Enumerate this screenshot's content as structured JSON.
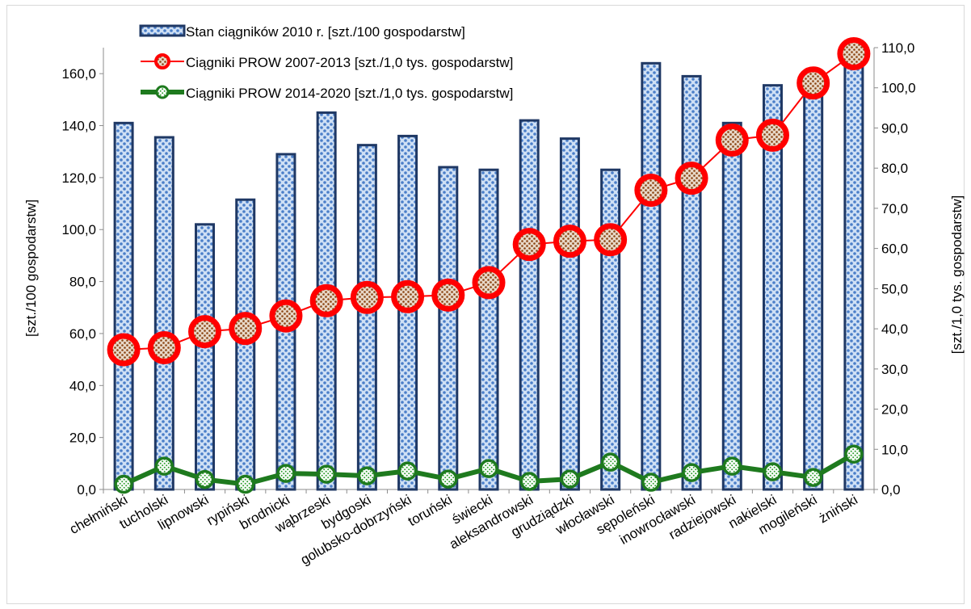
{
  "chart_data": {
    "type": "bar",
    "categories": [
      "chełmiński",
      "tucholski",
      "lipnowski",
      "rypiński",
      "brodnicki",
      "wąbrzeski",
      "bydgoski",
      "golubsko-dobrzyński",
      "toruński",
      "świecki",
      "aleksandrowski",
      "grudziądzki",
      "włocławski",
      "sępoleński",
      "inowrocławski",
      "radziejowski",
      "nakielski",
      "mogileński",
      "żniński"
    ],
    "series": [
      {
        "name": "Stan ciągników 2010 r. [szt./100 gospodarstw]",
        "type": "bar",
        "axis": "left",
        "color": "#4a7ec8",
        "values": [
          141,
          135.5,
          102,
          111.5,
          129,
          145,
          132.5,
          136,
          124,
          123,
          142,
          135,
          123,
          164,
          159,
          141,
          155.5,
          155,
          167
        ]
      },
      {
        "name": "Ciągniki PROW 2007-2013 [szt./1,0 tys. gospodarstw]",
        "type": "line",
        "axis": "right",
        "color": "#ff0000",
        "values": [
          34.8,
          35.3,
          39.3,
          40.1,
          43.2,
          47,
          47.8,
          48,
          48.4,
          51.5,
          61,
          61.8,
          62.2,
          74.5,
          77.5,
          87,
          88.2,
          101.2,
          108.5
        ]
      },
      {
        "name": "Ciągniki PROW 2014-2020 [szt./1,0 tys. gospodarstw]",
        "type": "line",
        "axis": "right",
        "color": "#1e7a1e",
        "values": [
          1.3,
          5.8,
          2.5,
          1.3,
          4,
          3.8,
          3.4,
          4.6,
          2.6,
          5.2,
          2,
          2.6,
          6.8,
          1.8,
          4.2,
          5.8,
          4.4,
          3,
          8.8
        ]
      }
    ],
    "ylabel": "[szt./100 gospodarstw]",
    "y2label": "[szt./1,0 tys. gospodarstw]",
    "ylim": [
      0,
      170
    ],
    "y2lim": [
      0,
      110
    ],
    "yticks": [
      "0,0",
      "20,0",
      "40,0",
      "60,0",
      "80,0",
      "100,0",
      "120,0",
      "140,0",
      "160,0"
    ],
    "y2ticks": [
      "0,0",
      "10,0",
      "20,0",
      "30,0",
      "40,0",
      "50,0",
      "60,0",
      "70,0",
      "80,0",
      "90,0",
      "100,0",
      "110,0"
    ],
    "grid": false,
    "legend_position": "top"
  }
}
